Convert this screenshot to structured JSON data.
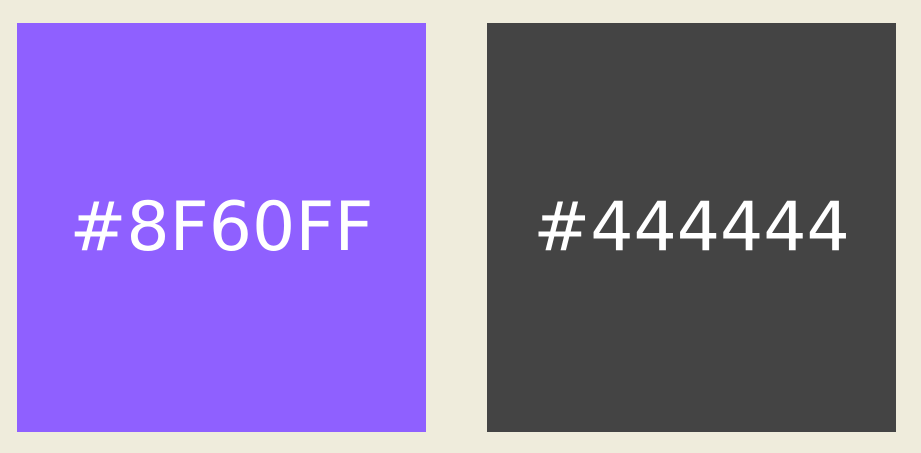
{
  "page": {
    "background_color": "#efecdc"
  },
  "swatches": [
    {
      "label": "#8F60FF",
      "color": "#8f60ff",
      "text_color": "#ffffff"
    },
    {
      "label": "#444444",
      "color": "#444444",
      "text_color": "#ffffff"
    }
  ]
}
